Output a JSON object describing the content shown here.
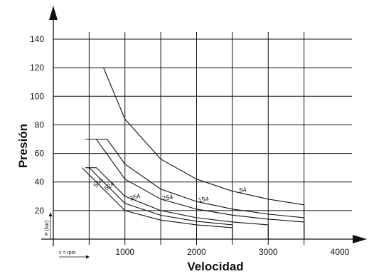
{
  "chart_data": {
    "type": "line",
    "title": "",
    "xlabel": "Velocidad",
    "ylabel": "Presión",
    "x_unit_label": "v = rpm",
    "y_unit_label": "P (bar)",
    "xlim": [
      0,
      4000
    ],
    "ylim": [
      0,
      140
    ],
    "x_ticks": [
      "1000",
      "2000",
      "3000",
      "4000"
    ],
    "y_ticks": [
      "20",
      "40",
      "60",
      "80",
      "100",
      "120",
      "140"
    ],
    "grid": true,
    "series": [
      {
        "name": "54",
        "x": [
          700,
          1000,
          1500,
          2000,
          2500,
          3000,
          3500
        ],
        "y": [
          120,
          84,
          56,
          42,
          33.6,
          28,
          24
        ]
      },
      {
        "name": "154",
        "x": [
          450,
          750,
          1000,
          1500,
          2000,
          2500,
          3000,
          3500
        ],
        "y": [
          70,
          70,
          52.5,
          35,
          26.3,
          21,
          17.5,
          15
        ]
      },
      {
        "name": "254",
        "x": [
          450,
          600,
          1000,
          1500,
          2000,
          2500,
          3000,
          3500
        ],
        "y": [
          70,
          70,
          42,
          28,
          21,
          16.8,
          14,
          12
        ]
      },
      {
        "name": "354",
        "x": [
          450,
          600,
          1000,
          1500,
          2000,
          2500,
          3000
        ],
        "y": [
          50,
          50,
          30,
          20,
          15,
          12,
          10
        ]
      },
      {
        "name": "524",
        "x": [
          450,
          500,
          1000,
          1500,
          2000,
          2500
        ],
        "y": [
          50,
          50,
          25,
          16.7,
          12.5,
          10
        ]
      },
      {
        "name": "554",
        "x": [
          400,
          1000,
          1500,
          2000,
          2500
        ],
        "y": [
          50,
          20,
          13.3,
          10,
          8
        ]
      }
    ]
  }
}
